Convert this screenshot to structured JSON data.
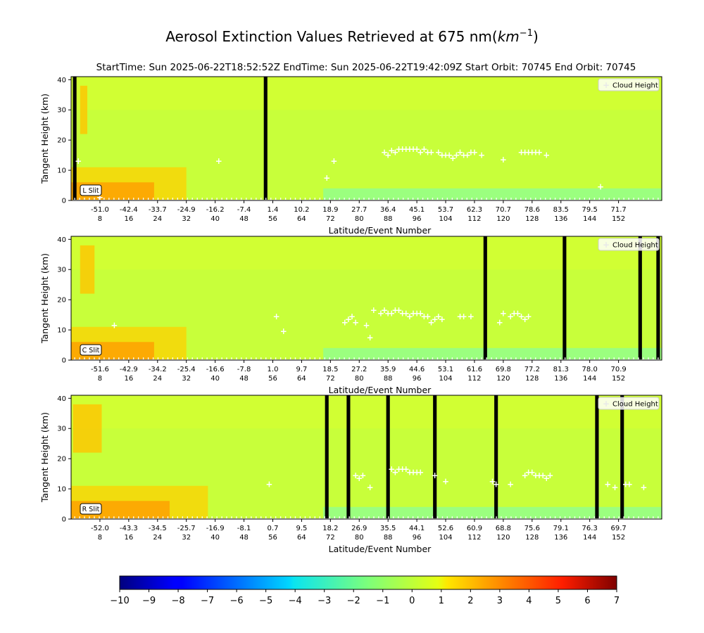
{
  "figure": {
    "title": "Aerosol Extinction Values Retrieved at 675 nm(km⁻¹)",
    "title_main": "Aerosol Extinction Values Retrieved at 675 nm(",
    "title_unit": "km",
    "title_exp": "−1",
    "title_close": ")",
    "subtitle": "StartTime: Sun 2025-06-22T18:52:52Z  EndTime: Sun 2025-06-22T19:42:09Z  Start Orbit: 70745 End Orbit: 70745"
  },
  "chart_data": [
    {
      "type": "heatmap",
      "slit": "L Slit",
      "ylabel": "Tangent Height (km)",
      "xlabel": "Latitude/Event Number",
      "legend": [
        "Cloud Height"
      ],
      "legend_position": "top-right",
      "ylim": [
        0,
        41
      ],
      "yticks": [
        "0",
        "10",
        "20",
        "30",
        "40"
      ],
      "xlim": [
        0,
        164
      ],
      "x_ticks": [
        {
          "event": "8",
          "lat": "-51.0"
        },
        {
          "event": "16",
          "lat": "-42.4"
        },
        {
          "event": "24",
          "lat": "-33.7"
        },
        {
          "event": "32",
          "lat": "-24.9"
        },
        {
          "event": "40",
          "lat": "-16.2"
        },
        {
          "event": "48",
          "lat": "-7.4"
        },
        {
          "event": "56",
          "lat": "1.4"
        },
        {
          "event": "64",
          "lat": "10.2"
        },
        {
          "event": "72",
          "lat": "18.9"
        },
        {
          "event": "80",
          "lat": "27.7"
        },
        {
          "event": "88",
          "lat": "36.4"
        },
        {
          "event": "96",
          "lat": "45.1"
        },
        {
          "event": "104",
          "lat": "53.7"
        },
        {
          "event": "112",
          "lat": "62.3"
        },
        {
          "event": "120",
          "lat": "70.7"
        },
        {
          "event": "128",
          "lat": "78.6"
        },
        {
          "event": "136",
          "lat": "83.5"
        },
        {
          "event": "144",
          "lat": "79.5"
        },
        {
          "event": "152",
          "lat": "71.7"
        }
      ],
      "missing_events": [
        1,
        54
      ],
      "high_events": [
        3,
        4
      ],
      "cloud_height": [
        [
          2,
          13
        ],
        [
          8,
          1
        ],
        [
          41,
          13
        ],
        [
          71,
          7.5
        ],
        [
          73,
          13
        ],
        [
          87,
          16
        ],
        [
          88,
          15
        ],
        [
          89,
          16.5
        ],
        [
          90,
          16
        ],
        [
          91,
          17
        ],
        [
          92,
          17
        ],
        [
          93,
          17
        ],
        [
          94,
          17
        ],
        [
          95,
          17
        ],
        [
          96,
          17
        ],
        [
          97,
          16
        ],
        [
          98,
          17
        ],
        [
          99,
          16
        ],
        [
          100,
          16
        ],
        [
          102,
          16
        ],
        [
          103,
          15
        ],
        [
          104,
          15
        ],
        [
          105,
          15
        ],
        [
          106,
          14
        ],
        [
          107,
          15
        ],
        [
          108,
          16
        ],
        [
          109,
          15
        ],
        [
          110,
          15
        ],
        [
          111,
          16
        ],
        [
          112,
          16
        ],
        [
          114,
          15
        ],
        [
          120,
          13.5
        ],
        [
          125,
          16
        ],
        [
          126,
          16
        ],
        [
          127,
          16
        ],
        [
          128,
          16
        ],
        [
          129,
          16
        ],
        [
          130,
          16
        ],
        [
          132,
          15
        ],
        [
          147,
          4.5
        ]
      ]
    },
    {
      "type": "heatmap",
      "slit": "C Slit",
      "ylabel": "Tangent Height (km)",
      "xlabel": "Latitude/Event Number",
      "legend": [
        "Cloud Height"
      ],
      "legend_position": "top-right",
      "ylim": [
        0,
        41
      ],
      "yticks": [
        "0",
        "10",
        "20",
        "30",
        "40"
      ],
      "xlim": [
        0,
        164
      ],
      "x_ticks": [
        {
          "event": "8",
          "lat": "-51.6"
        },
        {
          "event": "16",
          "lat": "-42.9"
        },
        {
          "event": "24",
          "lat": "-34.2"
        },
        {
          "event": "32",
          "lat": "-25.4"
        },
        {
          "event": "40",
          "lat": "-16.6"
        },
        {
          "event": "48",
          "lat": "-7.8"
        },
        {
          "event": "56",
          "lat": "1.0"
        },
        {
          "event": "64",
          "lat": "9.7"
        },
        {
          "event": "72",
          "lat": "18.5"
        },
        {
          "event": "80",
          "lat": "27.2"
        },
        {
          "event": "88",
          "lat": "35.9"
        },
        {
          "event": "96",
          "lat": "44.6"
        },
        {
          "event": "104",
          "lat": "53.1"
        },
        {
          "event": "112",
          "lat": "61.6"
        },
        {
          "event": "120",
          "lat": "69.8"
        },
        {
          "event": "128",
          "lat": "77.2"
        },
        {
          "event": "136",
          "lat": "81.3"
        },
        {
          "event": "144",
          "lat": "78.0"
        },
        {
          "event": "152",
          "lat": "70.9"
        }
      ],
      "missing_events": [
        115,
        137,
        158,
        163
      ],
      "high_events": [
        3,
        4,
        5,
        6
      ],
      "cloud_height": [
        [
          12,
          11.5
        ],
        [
          57,
          14.5
        ],
        [
          59,
          9.5
        ],
        [
          76,
          12.5
        ],
        [
          77,
          13.5
        ],
        [
          78,
          14.5
        ],
        [
          79,
          12.5
        ],
        [
          82,
          11.5
        ],
        [
          83,
          7.5
        ],
        [
          84,
          16.5
        ],
        [
          86,
          15.5
        ],
        [
          87,
          16.5
        ],
        [
          88,
          15.5
        ],
        [
          89,
          15.5
        ],
        [
          90,
          16.5
        ],
        [
          91,
          16.5
        ],
        [
          92,
          15.5
        ],
        [
          93,
          15.5
        ],
        [
          94,
          14.5
        ],
        [
          95,
          15.5
        ],
        [
          96,
          15.5
        ],
        [
          97,
          15.5
        ],
        [
          98,
          14.5
        ],
        [
          99,
          14.5
        ],
        [
          100,
          12.5
        ],
        [
          101,
          13.5
        ],
        [
          102,
          14.5
        ],
        [
          103,
          13.5
        ],
        [
          108,
          14.5
        ],
        [
          109,
          14.5
        ],
        [
          111,
          14.5
        ],
        [
          119,
          12.5
        ],
        [
          120,
          15.5
        ],
        [
          122,
          14.5
        ],
        [
          123,
          15.5
        ],
        [
          124,
          15.5
        ],
        [
          125,
          14.5
        ],
        [
          126,
          13.5
        ],
        [
          127,
          14.5
        ]
      ]
    },
    {
      "type": "heatmap",
      "slit": "R Slit",
      "ylabel": "Tangent Height (km)",
      "xlabel": "Latitude/Event Number",
      "legend": [
        "Cloud Height"
      ],
      "legend_position": "top-right",
      "ylim": [
        0,
        41
      ],
      "yticks": [
        "0",
        "10",
        "20",
        "30",
        "40"
      ],
      "xlim": [
        0,
        164
      ],
      "x_ticks": [
        {
          "event": "8",
          "lat": "-52.0"
        },
        {
          "event": "16",
          "lat": "-43.3"
        },
        {
          "event": "24",
          "lat": "-34.5"
        },
        {
          "event": "32",
          "lat": "-25.7"
        },
        {
          "event": "40",
          "lat": "-16.9"
        },
        {
          "event": "48",
          "lat": "-8.1"
        },
        {
          "event": "56",
          "lat": "0.7"
        },
        {
          "event": "64",
          "lat": "9.5"
        },
        {
          "event": "72",
          "lat": "18.2"
        },
        {
          "event": "80",
          "lat": "26.9"
        },
        {
          "event": "88",
          "lat": "35.5"
        },
        {
          "event": "96",
          "lat": "44.1"
        },
        {
          "event": "104",
          "lat": "52.6"
        },
        {
          "event": "112",
          "lat": "60.9"
        },
        {
          "event": "120",
          "lat": "68.8"
        },
        {
          "event": "128",
          "lat": "75.6"
        },
        {
          "event": "136",
          "lat": "79.1"
        },
        {
          "event": "144",
          "lat": "76.3"
        },
        {
          "event": "152",
          "lat": "69.7"
        }
      ],
      "missing_events": [
        71,
        77,
        88,
        101,
        118,
        146,
        153
      ],
      "high_events": [
        1,
        2,
        3,
        4,
        5,
        6,
        7,
        8
      ],
      "cloud_height": [
        [
          55,
          11.5
        ],
        [
          79,
          14.5
        ],
        [
          80,
          13.5
        ],
        [
          81,
          14.5
        ],
        [
          83,
          10.5
        ],
        [
          89,
          16.5
        ],
        [
          90,
          15.5
        ],
        [
          91,
          16.5
        ],
        [
          92,
          16.5
        ],
        [
          93,
          16.5
        ],
        [
          94,
          15.5
        ],
        [
          95,
          15.5
        ],
        [
          96,
          15.5
        ],
        [
          97,
          15.5
        ],
        [
          101,
          14.5
        ],
        [
          104,
          12.5
        ],
        [
          117,
          12.5
        ],
        [
          118,
          11.5
        ],
        [
          122,
          11.5
        ],
        [
          126,
          14.5
        ],
        [
          127,
          15.5
        ],
        [
          128,
          15.5
        ],
        [
          129,
          14.5
        ],
        [
          130,
          14.5
        ],
        [
          131,
          14.5
        ],
        [
          132,
          13.5
        ],
        [
          133,
          14.5
        ],
        [
          149,
          11.5
        ],
        [
          151,
          10.5
        ],
        [
          154,
          11.5
        ],
        [
          155,
          11.5
        ],
        [
          159,
          10.5
        ]
      ]
    }
  ],
  "colorbar": {
    "colormap": "jet",
    "range": [
      -10,
      7
    ],
    "ticks": [
      "−10",
      "−9",
      "−8",
      "−7",
      "−6",
      "−5",
      "−4",
      "−3",
      "−2",
      "−1",
      "0",
      "1",
      "2",
      "3",
      "4",
      "5",
      "6",
      "7"
    ]
  },
  "colors": {
    "background_field": "#c8ff3a",
    "missing": "#000000",
    "cloud_marker": "#ffffff"
  }
}
